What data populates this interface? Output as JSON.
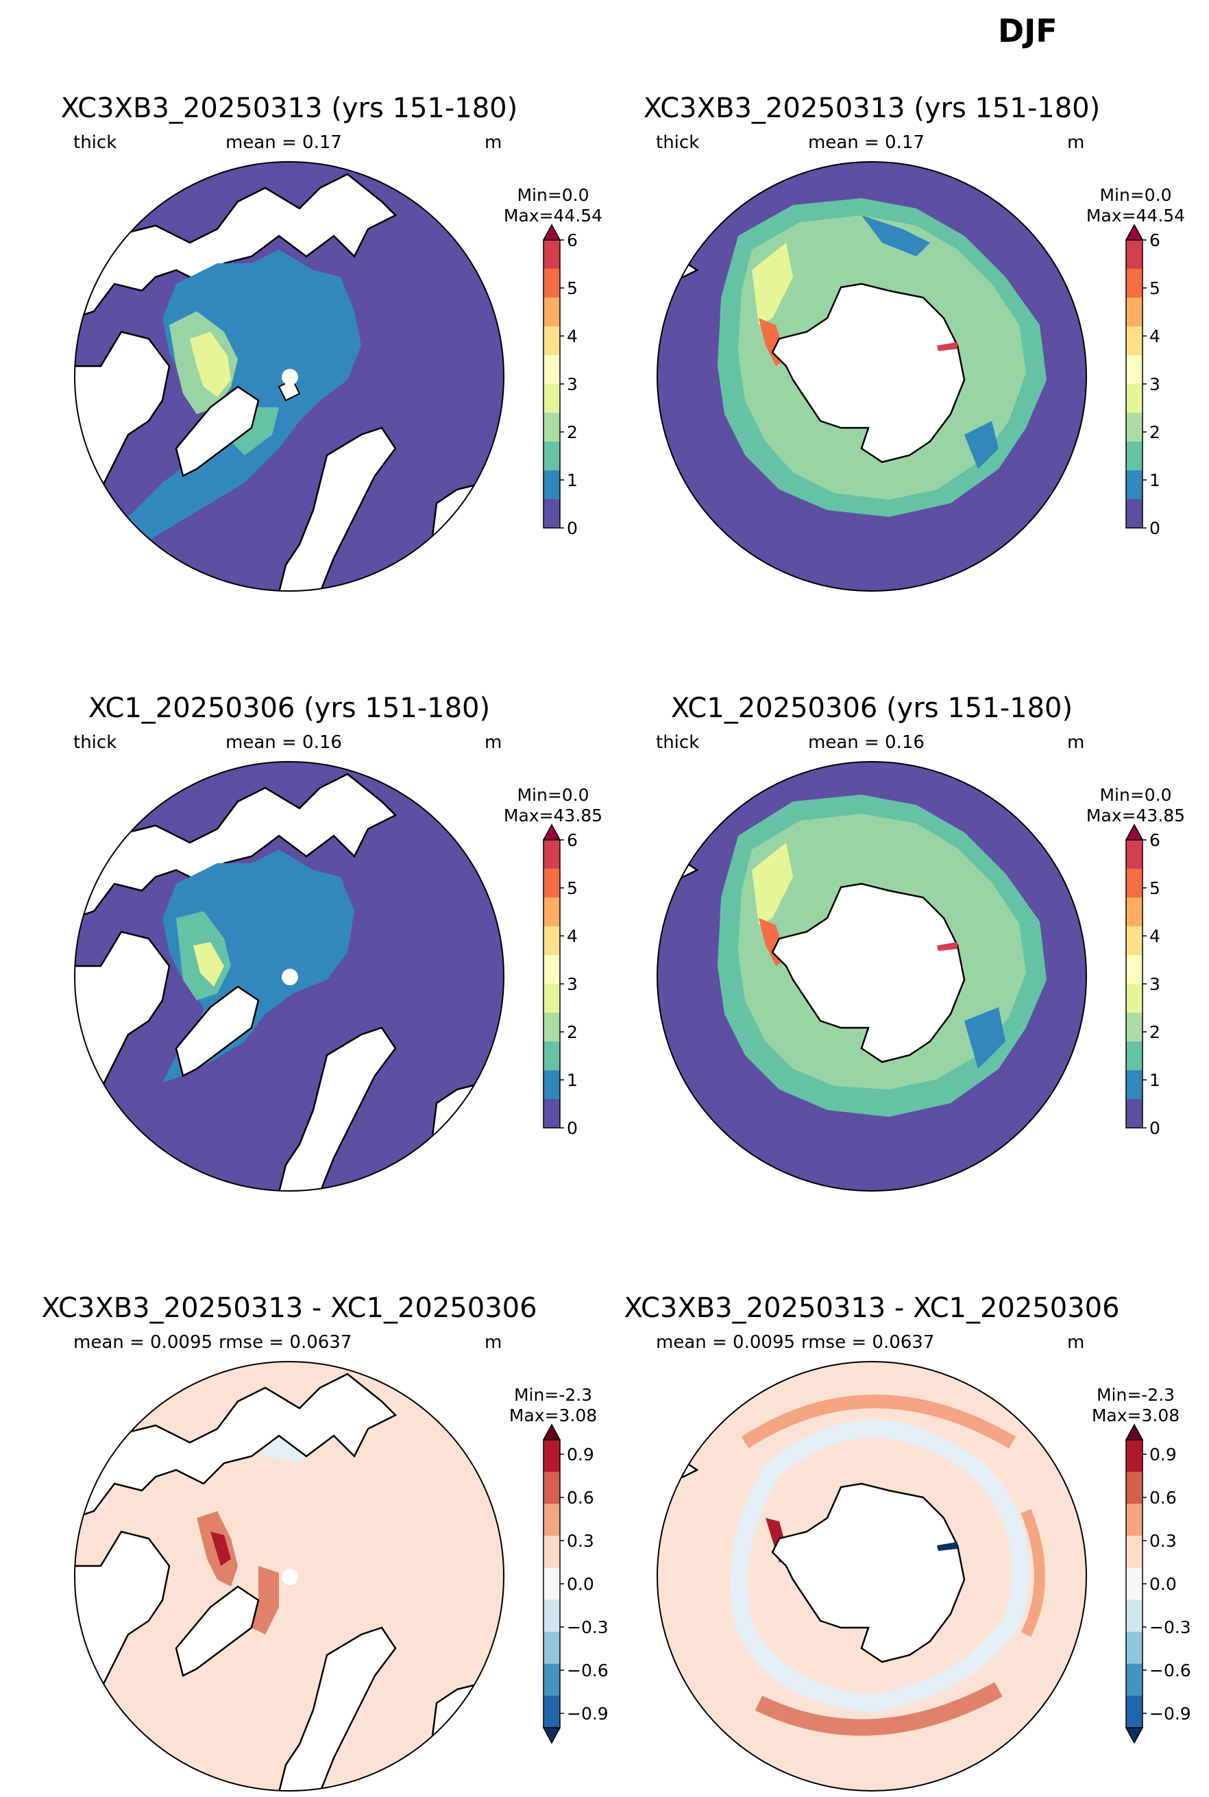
{
  "suptitle": "DJF",
  "rows": [
    {
      "title": "XC3XB3_20250313 (yrs 151-180)",
      "var_label": "thick",
      "stat_label": "mean = 0.17",
      "extra_label": "",
      "units": "m",
      "min_label": "Min=0.0",
      "max_label": "Max=44.54"
    },
    {
      "title": "XC1_20250306 (yrs 151-180)",
      "var_label": "thick",
      "stat_label": "mean = 0.16",
      "extra_label": "",
      "units": "m",
      "min_label": "Min=0.0",
      "max_label": "Max=43.85"
    },
    {
      "title": "XC3XB3_20250313 - XC1_20250306",
      "var_label": "mean = 0.0095",
      "stat_label": "",
      "extra_label": "rmse = 0.0637",
      "units": "m",
      "min_label": "Min=-2.3",
      "max_label": "Max=3.08"
    }
  ],
  "colorbar_thick": {
    "ticks": [
      "6",
      "5",
      "4",
      "3",
      "2",
      "1",
      "0"
    ],
    "colors": [
      "#5e4fa2",
      "#3288bd",
      "#66c2a5",
      "#abdda4",
      "#e6f598",
      "#ffffbf",
      "#fee08b",
      "#fdae61",
      "#f46d43",
      "#d53e4f",
      "#9e0142"
    ]
  },
  "colorbar_diff": {
    "ticks": [
      "0.9",
      "0.6",
      "0.3",
      "0.0",
      "−0.3",
      "−0.6",
      "−0.9"
    ],
    "colors": [
      "#053061",
      "#2166ac",
      "#4393c3",
      "#92c5de",
      "#d1e5f0",
      "#f7f7f7",
      "#fddbc7",
      "#f4a582",
      "#d6604d",
      "#b2182b",
      "#67001f"
    ]
  },
  "map_colors": {
    "land": "#ffffff",
    "open_ocean": "#5e4fa2",
    "thin_ice": "#3288bd",
    "mid_ice": "#66c2a5",
    "ice_band": "#99d5a4",
    "thick_ice": "#e6f598",
    "very_thick": "#d53e4f",
    "diff_base": "#fbe2d5",
    "diff_light_blue": "#e3eef5",
    "diff_red": "#e0826a",
    "diff_dark_red": "#b2182b"
  }
}
